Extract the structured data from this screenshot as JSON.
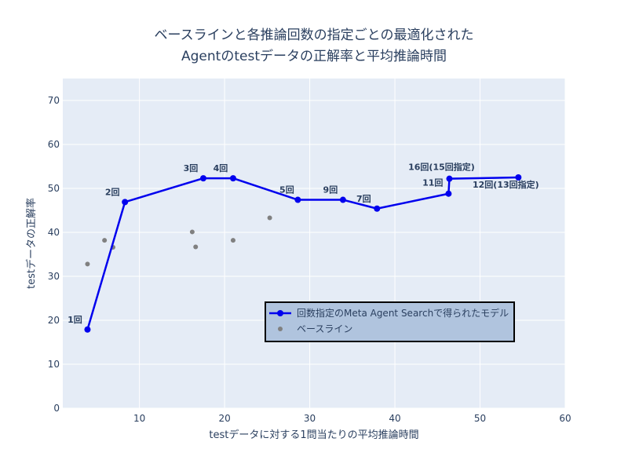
{
  "chart_data": {
    "type": "line",
    "title_lines": [
      "ベースラインと各推論回数の指定ごとの最適化された",
      "Agentのtestデータの正解率と平均推論時間"
    ],
    "xlabel": "testデータに対する1問当たりの平均推論時間",
    "ylabel": "testデータの正解率",
    "xlim": [
      1,
      60
    ],
    "ylim": [
      0,
      75
    ],
    "x_ticks": [
      10,
      20,
      30,
      40,
      50,
      60
    ],
    "y_ticks": [
      0,
      10,
      20,
      30,
      40,
      50,
      60,
      70
    ],
    "grid": true,
    "legend_position": "bottom-center",
    "series": [
      {
        "name": "回数指定のMeta Agent Searchで得られたモデル",
        "mode": "lines+markers",
        "color": "#0000ee",
        "x": [
          3.9,
          8.3,
          17.5,
          21.0,
          28.6,
          33.9,
          37.9,
          46.3,
          46.4,
          54.5
        ],
        "y": [
          17.9,
          46.9,
          52.3,
          52.3,
          47.4,
          47.4,
          45.4,
          48.8,
          52.2,
          52.5
        ],
        "labels": [
          "1回",
          "2回",
          "3回",
          "4回",
          "5回",
          "9回",
          "7回",
          "11回",
          "16回(15回指定)",
          "12回(13回指定)"
        ]
      },
      {
        "name": "ベースライン",
        "mode": "markers",
        "color": "#808080",
        "x": [
          3.9,
          5.9,
          6.9,
          16.2,
          16.6,
          21.0,
          25.3
        ],
        "y": [
          32.8,
          38.2,
          36.6,
          40.1,
          36.7,
          38.2,
          43.3
        ]
      }
    ]
  }
}
